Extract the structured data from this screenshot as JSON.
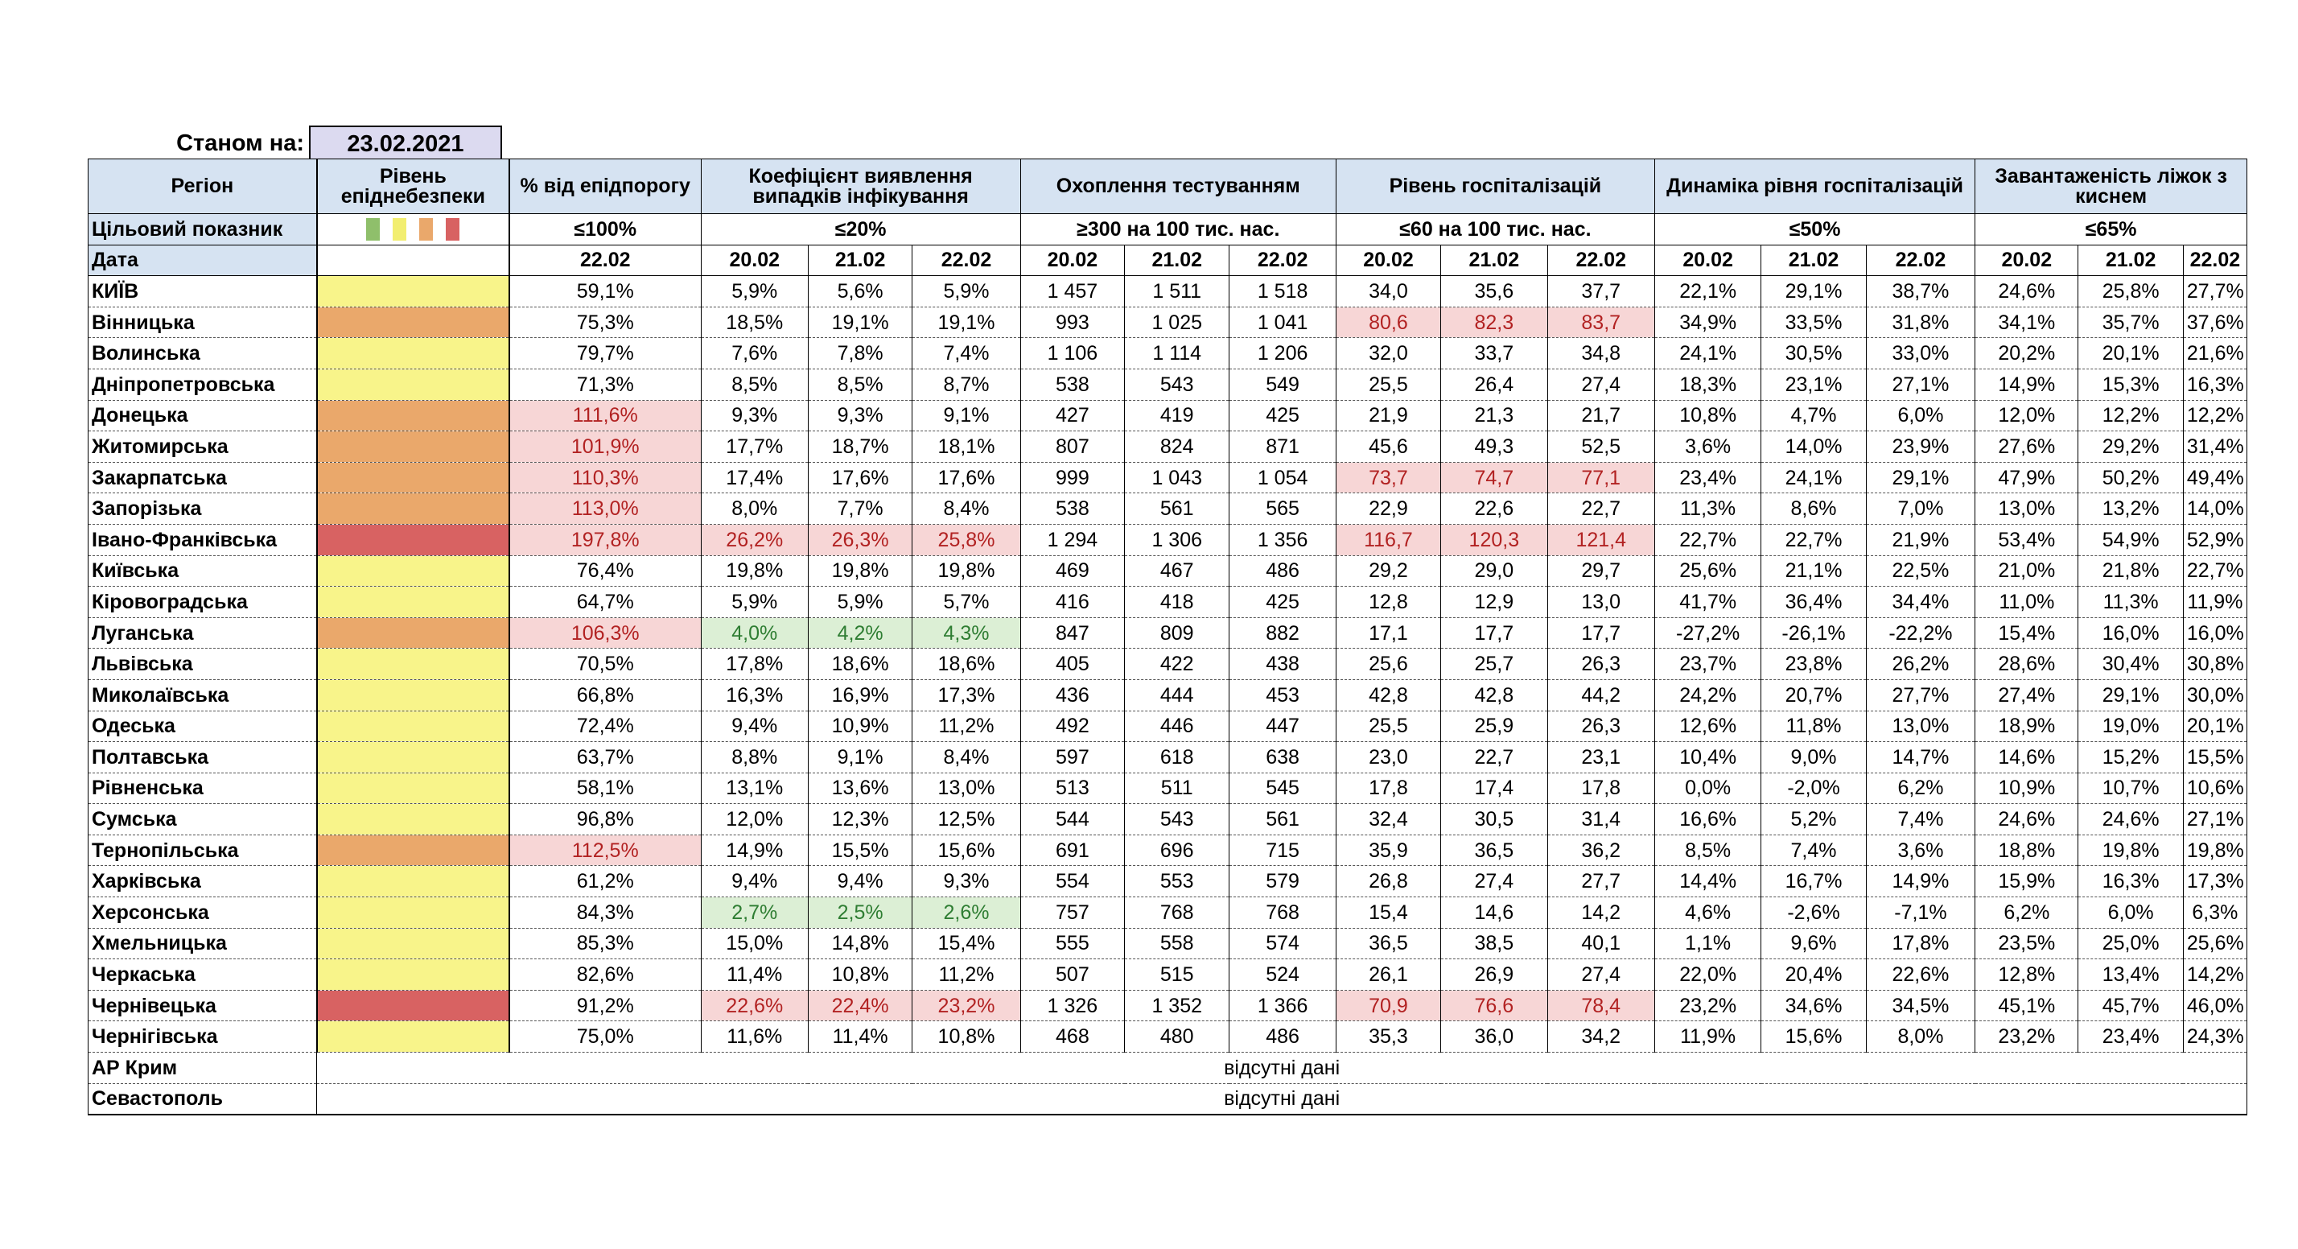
{
  "as_of_label": "Станом на:",
  "as_of_date": "23.02.2021",
  "headers": {
    "region": "Регіон",
    "level": "Рівень епіднебезпеки",
    "pct": "% від епідпорогу",
    "detection": "Коефіцієнт виявлення випадків інфікування",
    "testing": "Охоплення тестуванням",
    "hosp": "Рівень госпіталізацій",
    "hosp_dyn": "Динаміка рівня госпіталізацій",
    "oxygen": "Завантаженість ліжок з киснем"
  },
  "target": {
    "label": "Цільовий показник",
    "pct": "≤100%",
    "detection": "≤20%",
    "testing": "≥300 на 100 тис. нас.",
    "hosp": "≤60 на 100 тис. нас.",
    "hosp_dyn": "≤50%",
    "oxygen": "≤65%",
    "legend_colors": [
      "#8fbf6b",
      "#f2ee70",
      "#eaa86b",
      "#d86262"
    ]
  },
  "dates": {
    "label": "Дата",
    "pct": "22.02",
    "d1": "20.02",
    "d2": "21.02",
    "d3": "22.02"
  },
  "colors": {
    "yellow": "#f8f48a",
    "orange": "#eaa86b",
    "red": "#d86262",
    "pink_highlight": "#f7d6d6",
    "green_highlight": "#dcefd5",
    "header_blue": "#d6e3f2"
  },
  "rows": [
    {
      "region": "КИЇВ",
      "level": "yellow",
      "pct": "59,1%",
      "det": [
        "5,9%",
        "5,6%",
        "5,9%"
      ],
      "test": [
        "1 457",
        "1 511",
        "1 518"
      ],
      "hosp": [
        "34,0",
        "35,6",
        "37,7"
      ],
      "dyn": [
        "22,1%",
        "29,1%",
        "38,7%"
      ],
      "oxy": [
        "24,6%",
        "25,8%",
        "27,7%"
      ]
    },
    {
      "region": "Вінницька",
      "level": "orange",
      "pct": "75,3%",
      "det": [
        "18,5%",
        "19,1%",
        "19,1%"
      ],
      "test": [
        "993",
        "1 025",
        "1 041"
      ],
      "hosp": [
        "80,6",
        "82,3",
        "83,7"
      ],
      "hosp_hl": "red",
      "dyn": [
        "34,9%",
        "33,5%",
        "31,8%"
      ],
      "oxy": [
        "34,1%",
        "35,7%",
        "37,6%"
      ]
    },
    {
      "region": "Волинська",
      "level": "yellow",
      "pct": "79,7%",
      "det": [
        "7,6%",
        "7,8%",
        "7,4%"
      ],
      "test": [
        "1 106",
        "1 114",
        "1 206"
      ],
      "hosp": [
        "32,0",
        "33,7",
        "34,8"
      ],
      "dyn": [
        "24,1%",
        "30,5%",
        "33,0%"
      ],
      "oxy": [
        "20,2%",
        "20,1%",
        "21,6%"
      ]
    },
    {
      "region": "Дніпропетровська",
      "level": "yellow",
      "pct": "71,3%",
      "det": [
        "8,5%",
        "8,5%",
        "8,7%"
      ],
      "test": [
        "538",
        "543",
        "549"
      ],
      "hosp": [
        "25,5",
        "26,4",
        "27,4"
      ],
      "dyn": [
        "18,3%",
        "23,1%",
        "27,1%"
      ],
      "oxy": [
        "14,9%",
        "15,3%",
        "16,3%"
      ]
    },
    {
      "region": "Донецька",
      "level": "orange",
      "pct": "111,6%",
      "pct_hl": "red",
      "det": [
        "9,3%",
        "9,3%",
        "9,1%"
      ],
      "test": [
        "427",
        "419",
        "425"
      ],
      "hosp": [
        "21,9",
        "21,3",
        "21,7"
      ],
      "dyn": [
        "10,8%",
        "4,7%",
        "6,0%"
      ],
      "oxy": [
        "12,0%",
        "12,2%",
        "12,2%"
      ]
    },
    {
      "region": "Житомирська",
      "level": "orange",
      "pct": "101,9%",
      "pct_hl": "red",
      "det": [
        "17,7%",
        "18,7%",
        "18,1%"
      ],
      "test": [
        "807",
        "824",
        "871"
      ],
      "hosp": [
        "45,6",
        "49,3",
        "52,5"
      ],
      "dyn": [
        "3,6%",
        "14,0%",
        "23,9%"
      ],
      "oxy": [
        "27,6%",
        "29,2%",
        "31,4%"
      ]
    },
    {
      "region": "Закарпатська",
      "level": "orange",
      "pct": "110,3%",
      "pct_hl": "red",
      "det": [
        "17,4%",
        "17,6%",
        "17,6%"
      ],
      "test": [
        "999",
        "1 043",
        "1 054"
      ],
      "hosp": [
        "73,7",
        "74,7",
        "77,1"
      ],
      "hosp_hl": "red",
      "dyn": [
        "23,4%",
        "24,1%",
        "29,1%"
      ],
      "oxy": [
        "47,9%",
        "50,2%",
        "49,4%"
      ]
    },
    {
      "region": "Запорізька",
      "level": "orange",
      "pct": "113,0%",
      "pct_hl": "red",
      "det": [
        "8,0%",
        "7,7%",
        "8,4%"
      ],
      "test": [
        "538",
        "561",
        "565"
      ],
      "hosp": [
        "22,9",
        "22,6",
        "22,7"
      ],
      "dyn": [
        "11,3%",
        "8,6%",
        "7,0%"
      ],
      "oxy": [
        "13,0%",
        "13,2%",
        "14,0%"
      ]
    },
    {
      "region": "Івано-Франківська",
      "level": "red",
      "pct": "197,8%",
      "pct_hl": "red",
      "det": [
        "26,2%",
        "26,3%",
        "25,8%"
      ],
      "det_hl": "red",
      "test": [
        "1 294",
        "1 306",
        "1 356"
      ],
      "hosp": [
        "116,7",
        "120,3",
        "121,4"
      ],
      "hosp_hl": "red",
      "dyn": [
        "22,7%",
        "22,7%",
        "21,9%"
      ],
      "oxy": [
        "53,4%",
        "54,9%",
        "52,9%"
      ]
    },
    {
      "region": "Київська",
      "level": "yellow",
      "pct": "76,4%",
      "det": [
        "19,8%",
        "19,8%",
        "19,8%"
      ],
      "test": [
        "469",
        "467",
        "486"
      ],
      "hosp": [
        "29,2",
        "29,0",
        "29,7"
      ],
      "dyn": [
        "25,6%",
        "21,1%",
        "22,5%"
      ],
      "oxy": [
        "21,0%",
        "21,8%",
        "22,7%"
      ]
    },
    {
      "region": "Кіровоградська",
      "level": "yellow",
      "pct": "64,7%",
      "det": [
        "5,9%",
        "5,9%",
        "5,7%"
      ],
      "test": [
        "416",
        "418",
        "425"
      ],
      "hosp": [
        "12,8",
        "12,9",
        "13,0"
      ],
      "dyn": [
        "41,7%",
        "36,4%",
        "34,4%"
      ],
      "oxy": [
        "11,0%",
        "11,3%",
        "11,9%"
      ]
    },
    {
      "region": "Луганська",
      "level": "orange",
      "pct": "106,3%",
      "pct_hl": "red",
      "det": [
        "4,0%",
        "4,2%",
        "4,3%"
      ],
      "det_hl": "green",
      "test": [
        "847",
        "809",
        "882"
      ],
      "hosp": [
        "17,1",
        "17,7",
        "17,7"
      ],
      "dyn": [
        "-27,2%",
        "-26,1%",
        "-22,2%"
      ],
      "oxy": [
        "15,4%",
        "16,0%",
        "16,0%"
      ]
    },
    {
      "region": "Львівська",
      "level": "yellow",
      "pct": "70,5%",
      "det": [
        "17,8%",
        "18,6%",
        "18,6%"
      ],
      "test": [
        "405",
        "422",
        "438"
      ],
      "hosp": [
        "25,6",
        "25,7",
        "26,3"
      ],
      "dyn": [
        "23,7%",
        "23,8%",
        "26,2%"
      ],
      "oxy": [
        "28,6%",
        "30,4%",
        "30,8%"
      ]
    },
    {
      "region": "Миколаївська",
      "level": "yellow",
      "pct": "66,8%",
      "det": [
        "16,3%",
        "16,9%",
        "17,3%"
      ],
      "test": [
        "436",
        "444",
        "453"
      ],
      "hosp": [
        "42,8",
        "42,8",
        "44,2"
      ],
      "dyn": [
        "24,2%",
        "20,7%",
        "27,7%"
      ],
      "oxy": [
        "27,4%",
        "29,1%",
        "30,0%"
      ]
    },
    {
      "region": "Одеська",
      "level": "yellow",
      "pct": "72,4%",
      "det": [
        "9,4%",
        "10,9%",
        "11,2%"
      ],
      "test": [
        "492",
        "446",
        "447"
      ],
      "hosp": [
        "25,5",
        "25,9",
        "26,3"
      ],
      "dyn": [
        "12,6%",
        "11,8%",
        "13,0%"
      ],
      "oxy": [
        "18,9%",
        "19,0%",
        "20,1%"
      ]
    },
    {
      "region": "Полтавська",
      "level": "yellow",
      "pct": "63,7%",
      "det": [
        "8,8%",
        "9,1%",
        "8,4%"
      ],
      "test": [
        "597",
        "618",
        "638"
      ],
      "hosp": [
        "23,0",
        "22,7",
        "23,1"
      ],
      "dyn": [
        "10,4%",
        "9,0%",
        "14,7%"
      ],
      "oxy": [
        "14,6%",
        "15,2%",
        "15,5%"
      ]
    },
    {
      "region": "Рівненська",
      "level": "yellow",
      "pct": "58,1%",
      "det": [
        "13,1%",
        "13,6%",
        "13,0%"
      ],
      "test": [
        "513",
        "511",
        "545"
      ],
      "hosp": [
        "17,8",
        "17,4",
        "17,8"
      ],
      "dyn": [
        "0,0%",
        "-2,0%",
        "6,2%"
      ],
      "oxy": [
        "10,9%",
        "10,7%",
        "10,6%"
      ]
    },
    {
      "region": "Сумська",
      "level": "yellow",
      "pct": "96,8%",
      "det": [
        "12,0%",
        "12,3%",
        "12,5%"
      ],
      "test": [
        "544",
        "543",
        "561"
      ],
      "hosp": [
        "32,4",
        "30,5",
        "31,4"
      ],
      "dyn": [
        "16,6%",
        "5,2%",
        "7,4%"
      ],
      "oxy": [
        "24,6%",
        "24,6%",
        "27,1%"
      ]
    },
    {
      "region": "Тернопільська",
      "level": "orange",
      "pct": "112,5%",
      "pct_hl": "red",
      "det": [
        "14,9%",
        "15,5%",
        "15,6%"
      ],
      "test": [
        "691",
        "696",
        "715"
      ],
      "hosp": [
        "35,9",
        "36,5",
        "36,2"
      ],
      "dyn": [
        "8,5%",
        "7,4%",
        "3,6%"
      ],
      "oxy": [
        "18,8%",
        "19,8%",
        "19,8%"
      ]
    },
    {
      "region": "Харківська",
      "level": "yellow",
      "pct": "61,2%",
      "det": [
        "9,4%",
        "9,4%",
        "9,3%"
      ],
      "test": [
        "554",
        "553",
        "579"
      ],
      "hosp": [
        "26,8",
        "27,4",
        "27,7"
      ],
      "dyn": [
        "14,4%",
        "16,7%",
        "14,9%"
      ],
      "oxy": [
        "15,9%",
        "16,3%",
        "17,3%"
      ]
    },
    {
      "region": "Херсонська",
      "level": "yellow",
      "pct": "84,3%",
      "det": [
        "2,7%",
        "2,5%",
        "2,6%"
      ],
      "det_hl": "green",
      "test": [
        "757",
        "768",
        "768"
      ],
      "hosp": [
        "15,4",
        "14,6",
        "14,2"
      ],
      "dyn": [
        "4,6%",
        "-2,6%",
        "-7,1%"
      ],
      "oxy": [
        "6,2%",
        "6,0%",
        "6,3%"
      ]
    },
    {
      "region": "Хмельницька",
      "level": "yellow",
      "pct": "85,3%",
      "det": [
        "15,0%",
        "14,8%",
        "15,4%"
      ],
      "test": [
        "555",
        "558",
        "574"
      ],
      "hosp": [
        "36,5",
        "38,5",
        "40,1"
      ],
      "dyn": [
        "1,1%",
        "9,6%",
        "17,8%"
      ],
      "oxy": [
        "23,5%",
        "25,0%",
        "25,6%"
      ]
    },
    {
      "region": "Черкаська",
      "level": "yellow",
      "pct": "82,6%",
      "det": [
        "11,4%",
        "10,8%",
        "11,2%"
      ],
      "test": [
        "507",
        "515",
        "524"
      ],
      "hosp": [
        "26,1",
        "26,9",
        "27,4"
      ],
      "dyn": [
        "22,0%",
        "20,4%",
        "22,6%"
      ],
      "oxy": [
        "12,8%",
        "13,4%",
        "14,2%"
      ]
    },
    {
      "region": "Чернівецька",
      "level": "red",
      "pct": "91,2%",
      "det": [
        "22,6%",
        "22,4%",
        "23,2%"
      ],
      "det_hl": "red",
      "test": [
        "1 326",
        "1 352",
        "1 366"
      ],
      "hosp": [
        "70,9",
        "76,6",
        "78,4"
      ],
      "hosp_hl": "red",
      "dyn": [
        "23,2%",
        "34,6%",
        "34,5%"
      ],
      "oxy": [
        "45,1%",
        "45,7%",
        "46,0%"
      ]
    },
    {
      "region": "Чернігівська",
      "level": "yellow",
      "pct": "75,0%",
      "det": [
        "11,6%",
        "11,4%",
        "10,8%"
      ],
      "test": [
        "468",
        "480",
        "486"
      ],
      "hosp": [
        "35,3",
        "36,0",
        "34,2"
      ],
      "dyn": [
        "11,9%",
        "15,6%",
        "8,0%"
      ],
      "oxy": [
        "23,2%",
        "23,4%",
        "24,3%"
      ]
    }
  ],
  "no_data_rows": [
    {
      "region": "АР Крим",
      "text": "відсутні дані"
    },
    {
      "region": "Севастополь",
      "text": "відсутні дані"
    }
  ]
}
